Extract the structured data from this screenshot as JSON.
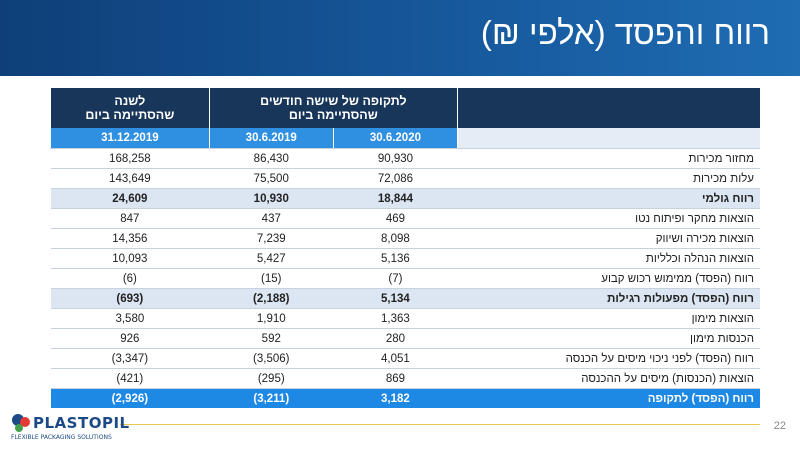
{
  "header": {
    "title": "רווח והפסד (אלפי ₪)"
  },
  "table": {
    "group_headers": [
      "לתקופה של שישה חודשים\nשהסתיימה ביום",
      "לשנה\nשהסתיימה ביום"
    ],
    "dates": [
      "30.6.2020",
      "30.6.2019",
      "31.12.2019"
    ],
    "rows": [
      [
        "מחזור מכירות",
        "90,930",
        "86,430",
        "168,258"
      ],
      [
        "עלות מכירות",
        "72,086",
        "75,500",
        "143,649"
      ],
      [
        "רווח גולמי",
        "18,844",
        "10,930",
        "24,609"
      ],
      [
        "הוצאות מחקר ופיתוח נטו",
        "469",
        "437",
        "847"
      ],
      [
        "הוצאות מכירה ושיווק",
        "8,098",
        "7,239",
        "14,356"
      ],
      [
        "הוצאות הנהלה וכלליות",
        "5,136",
        "5,427",
        "10,093"
      ],
      [
        "רווח (הפסד) ממימוש רכוש קבוע",
        "(7)",
        "(15)",
        "(6)"
      ],
      [
        "רווח (הפסד) מפעולות רגילות",
        "5,134",
        "(2,188)",
        "(693)"
      ],
      [
        "הוצאות מימון",
        "1,363",
        "1,910",
        "3,580"
      ],
      [
        "הכנסות מימון",
        "280",
        "592",
        "926"
      ],
      [
        "רווח (הפסד) לפני ניכוי מיסים על הכנסה",
        "4,051",
        "(3,506)",
        "(3,347)"
      ],
      [
        "הוצאות (הכנסות) מיסים על ההכנסה",
        "869",
        "(295)",
        "(421)"
      ],
      [
        "רווח (הפסד) לתקופה",
        "3,182",
        "(3,211)",
        "(2,926)"
      ]
    ]
  },
  "footer": {
    "logo": "PLASTOPIL",
    "tagline": "FLEXIBLE PACKAGING SOLUTIONS",
    "page_number": "22"
  }
}
